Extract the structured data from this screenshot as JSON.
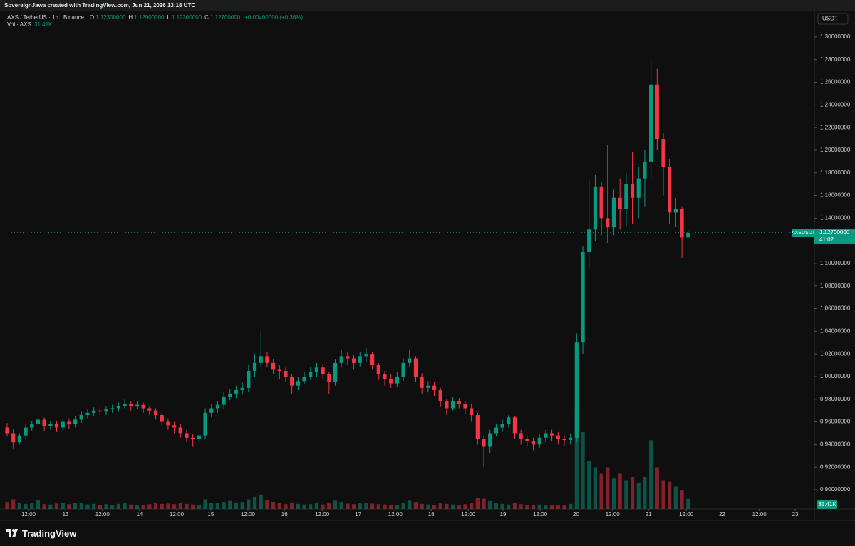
{
  "page": {
    "credit": "SovereignJawa created with TradingView.com, Jun 21, 2026 13:18 UTC",
    "brand": "TradingView"
  },
  "chart_data": {
    "type": "candlestick",
    "symbol_title": "AXS / TetherUS · 1h · Binance",
    "ohlc_header": [
      {
        "key": "O",
        "text": "1.12300000"
      },
      {
        "key": "H",
        "text": "1.12900000"
      },
      {
        "key": "L",
        "text": "1.12300000"
      },
      {
        "key": "C",
        "text": "1.12700000"
      }
    ],
    "change_text": "+0.00400000 (+0.36%)",
    "volume_title": "Vol · AXS",
    "currency": "USDT",
    "ticker": "AXSUSDT",
    "last_price": 1.127,
    "last_price_label": "1.12700000",
    "countdown": "41:02",
    "last_volume_label": "31.41K",
    "up_color": "#089981",
    "down_color": "#f23645",
    "open": [
      0.955,
      0.95,
      0.942,
      0.948,
      0.955,
      0.958,
      0.962,
      0.956,
      0.958,
      0.955,
      0.96,
      0.958,
      0.962,
      0.966,
      0.968,
      0.97,
      0.969,
      0.971,
      0.972,
      0.974,
      0.976,
      0.974,
      0.975,
      0.972,
      0.97,
      0.966,
      0.96,
      0.957,
      0.955,
      0.95,
      0.946,
      0.945,
      0.948,
      0.968,
      0.972,
      0.975,
      0.982,
      0.985,
      0.988,
      0.99,
      1.005,
      1.012,
      1.018,
      1.012,
      1.006,
      1.005,
      1.0,
      0.992,
      0.996,
      1.0,
      1.004,
      1.008,
      1.002,
      0.995,
      1.012,
      1.018,
      1.016,
      1.012,
      1.018,
      1.02,
      1.01,
      1.002,
      0.998,
      0.994,
      1.0,
      1.012,
      1.016,
      1.0,
      0.99,
      0.992,
      0.988,
      0.978,
      0.972,
      0.978,
      0.976,
      0.972,
      0.966,
      0.945,
      0.938,
      0.95,
      0.955,
      0.958,
      0.964,
      0.95,
      0.945,
      0.943,
      0.94,
      0.946,
      0.95,
      0.948,
      0.945,
      0.944,
      0.946,
      1.03,
      1.11,
      1.13,
      1.168,
      1.14,
      1.132,
      1.158,
      1.148,
      1.17,
      1.158,
      1.175,
      1.19,
      1.258,
      1.21,
      1.185,
      1.145,
      1.148,
      1.123
    ],
    "high": [
      0.959,
      0.954,
      0.95,
      0.958,
      0.961,
      0.966,
      0.964,
      0.961,
      0.961,
      0.963,
      0.963,
      0.965,
      0.969,
      0.971,
      0.973,
      0.973,
      0.974,
      0.975,
      0.977,
      0.98,
      0.978,
      0.978,
      0.977,
      0.974,
      0.972,
      0.968,
      0.963,
      0.96,
      0.958,
      0.953,
      0.949,
      0.951,
      0.972,
      0.976,
      0.978,
      0.986,
      0.989,
      0.992,
      0.995,
      1.01,
      1.02,
      1.04,
      1.022,
      1.015,
      1.01,
      1.008,
      1.002,
      1.0,
      1.004,
      1.008,
      1.012,
      1.011,
      1.004,
      1.015,
      1.024,
      1.022,
      1.019,
      1.022,
      1.025,
      1.022,
      1.012,
      1.005,
      1.002,
      1.004,
      1.016,
      1.024,
      1.018,
      1.003,
      0.996,
      0.995,
      0.99,
      0.98,
      0.982,
      0.981,
      0.978,
      0.976,
      0.968,
      0.948,
      0.953,
      0.958,
      0.962,
      0.966,
      0.965,
      0.953,
      0.948,
      0.946,
      0.949,
      0.953,
      0.953,
      0.951,
      0.948,
      0.95,
      1.038,
      1.115,
      1.175,
      1.178,
      1.172,
      1.205,
      1.165,
      1.175,
      1.18,
      1.198,
      1.185,
      1.2,
      1.28,
      1.272,
      1.215,
      1.192,
      1.158,
      1.15,
      1.129
    ],
    "low": [
      0.947,
      0.936,
      0.94,
      0.945,
      0.952,
      0.955,
      0.952,
      0.953,
      0.951,
      0.952,
      0.954,
      0.955,
      0.959,
      0.963,
      0.965,
      0.966,
      0.966,
      0.968,
      0.969,
      0.971,
      0.97,
      0.971,
      0.968,
      0.966,
      0.962,
      0.956,
      0.953,
      0.95,
      0.946,
      0.942,
      0.938,
      0.941,
      0.945,
      0.964,
      0.968,
      0.971,
      0.979,
      0.981,
      0.984,
      0.986,
      1.0,
      1.008,
      1.008,
      1.002,
      0.998,
      0.995,
      0.985,
      0.988,
      0.993,
      0.997,
      1.0,
      0.998,
      0.985,
      0.992,
      1.008,
      1.01,
      1.006,
      1.009,
      1.013,
      1.006,
      0.997,
      0.992,
      0.99,
      0.991,
      0.996,
      1.009,
      0.995,
      0.985,
      0.986,
      0.983,
      0.973,
      0.966,
      0.97,
      0.972,
      0.967,
      0.96,
      0.94,
      0.92,
      0.932,
      0.947,
      0.951,
      0.955,
      0.945,
      0.94,
      0.938,
      0.935,
      0.937,
      0.942,
      0.943,
      0.94,
      0.939,
      0.94,
      0.942,
      1.02,
      1.095,
      1.12,
      1.125,
      1.118,
      1.125,
      1.13,
      1.132,
      1.135,
      1.14,
      1.15,
      1.175,
      1.2,
      1.16,
      1.135,
      1.132,
      1.105,
      1.123
    ],
    "close": [
      0.95,
      0.942,
      0.948,
      0.955,
      0.958,
      0.962,
      0.956,
      0.958,
      0.955,
      0.96,
      0.958,
      0.962,
      0.966,
      0.968,
      0.97,
      0.969,
      0.971,
      0.972,
      0.974,
      0.976,
      0.974,
      0.975,
      0.972,
      0.97,
      0.966,
      0.96,
      0.957,
      0.955,
      0.95,
      0.946,
      0.945,
      0.948,
      0.968,
      0.972,
      0.975,
      0.982,
      0.985,
      0.988,
      0.99,
      1.005,
      1.012,
      1.018,
      1.012,
      1.006,
      1.005,
      1.0,
      0.992,
      0.996,
      1.0,
      1.004,
      1.008,
      1.002,
      0.995,
      1.012,
      1.018,
      1.016,
      1.012,
      1.018,
      1.02,
      1.01,
      1.002,
      0.998,
      0.994,
      1.0,
      1.012,
      1.016,
      1.0,
      0.99,
      0.992,
      0.988,
      0.978,
      0.972,
      0.978,
      0.976,
      0.972,
      0.966,
      0.945,
      0.938,
      0.95,
      0.955,
      0.958,
      0.964,
      0.95,
      0.945,
      0.943,
      0.94,
      0.946,
      0.95,
      0.948,
      0.945,
      0.944,
      0.946,
      1.03,
      1.11,
      1.13,
      1.168,
      1.14,
      1.132,
      1.158,
      1.148,
      1.17,
      1.158,
      1.175,
      1.19,
      1.258,
      1.21,
      1.185,
      1.145,
      1.148,
      1.123,
      1.127
    ],
    "volume": [
      22000,
      30000,
      18000,
      16000,
      20000,
      28000,
      15000,
      14000,
      17000,
      19000,
      15000,
      18000,
      20000,
      14000,
      16000,
      12000,
      15000,
      13000,
      16000,
      18000,
      14000,
      12000,
      13000,
      15000,
      18000,
      16000,
      17000,
      15000,
      20000,
      16000,
      14000,
      12000,
      30000,
      20000,
      18000,
      22000,
      25000,
      20000,
      22000,
      30000,
      38000,
      45000,
      28000,
      22000,
      18000,
      15000,
      20000,
      16000,
      14000,
      15000,
      18000,
      14000,
      20000,
      26000,
      22000,
      17000,
      15000,
      18000,
      20000,
      17000,
      15000,
      14000,
      13000,
      12000,
      18000,
      26000,
      22000,
      16000,
      14000,
      13000,
      18000,
      16000,
      14000,
      12000,
      15000,
      20000,
      35000,
      32000,
      25000,
      18000,
      16000,
      14000,
      20000,
      15000,
      13000,
      12000,
      14000,
      13000,
      12000,
      11000,
      12000,
      16000,
      310000,
      240000,
      150000,
      130000,
      110000,
      130000,
      95000,
      110000,
      90000,
      100000,
      80000,
      100000,
      215000,
      130000,
      90000,
      85000,
      70000,
      60000,
      31410
    ],
    "volume_lim": [
      0,
      400000
    ],
    "xlim": [
      -0.23,
      130.4
    ],
    "xticks": [
      {
        "value": 3.45,
        "label": "12:00"
      },
      {
        "value": 9.44,
        "label": "13"
      },
      {
        "value": 15.4,
        "label": "12:00"
      },
      {
        "value": 21.4,
        "label": "14"
      },
      {
        "value": 27.4,
        "label": "12:00"
      },
      {
        "value": 32.9,
        "label": "15"
      },
      {
        "value": 38.9,
        "label": "12:00"
      },
      {
        "value": 44.8,
        "label": "16"
      },
      {
        "value": 50.9,
        "label": "12:00"
      },
      {
        "value": 56.7,
        "label": "17"
      },
      {
        "value": 62.7,
        "label": "12:00"
      },
      {
        "value": 68.5,
        "label": "18"
      },
      {
        "value": 74.5,
        "label": "12:00"
      },
      {
        "value": 80.1,
        "label": "19"
      },
      {
        "value": 86.1,
        "label": "12:00"
      },
      {
        "value": 91.9,
        "label": "20"
      },
      {
        "value": 97.8,
        "label": "12:00"
      },
      {
        "value": 103.6,
        "label": "21"
      },
      {
        "value": 109.7,
        "label": "12:00"
      },
      {
        "value": 115.5,
        "label": "22"
      },
      {
        "value": 121.5,
        "label": "12:00"
      },
      {
        "value": 127.3,
        "label": "23"
      }
    ],
    "ylim": [
      0.883,
      1.3226
    ],
    "yticks": [
      {
        "value": 1.3,
        "label": "1.30000000"
      },
      {
        "value": 1.28,
        "label": "1.28000000"
      },
      {
        "value": 1.26,
        "label": "1.26000000"
      },
      {
        "value": 1.24,
        "label": "1.24000000"
      },
      {
        "value": 1.22,
        "label": "1.22000000"
      },
      {
        "value": 1.2,
        "label": "1.20000000"
      },
      {
        "value": 1.18,
        "label": "1.18000000"
      },
      {
        "value": 1.16,
        "label": "1.16000000"
      },
      {
        "value": 1.14,
        "label": "1.14000000"
      },
      {
        "value": 1.12,
        "label": "1.12000000"
      },
      {
        "value": 1.1,
        "label": "1.10000000"
      },
      {
        "value": 1.08,
        "label": "1.08000000"
      },
      {
        "value": 1.06,
        "label": "1.06000000"
      },
      {
        "value": 1.04,
        "label": "1.04000000"
      },
      {
        "value": 1.02,
        "label": "1.02000000"
      },
      {
        "value": 1.0,
        "label": "1.00000000"
      },
      {
        "value": 0.98,
        "label": "0.98000000"
      },
      {
        "value": 0.96,
        "label": "0.96000000"
      },
      {
        "value": 0.94,
        "label": "0.94000000"
      },
      {
        "value": 0.92,
        "label": "0.92000000"
      },
      {
        "value": 0.9,
        "label": "0.90000000"
      }
    ],
    "grid": false
  }
}
